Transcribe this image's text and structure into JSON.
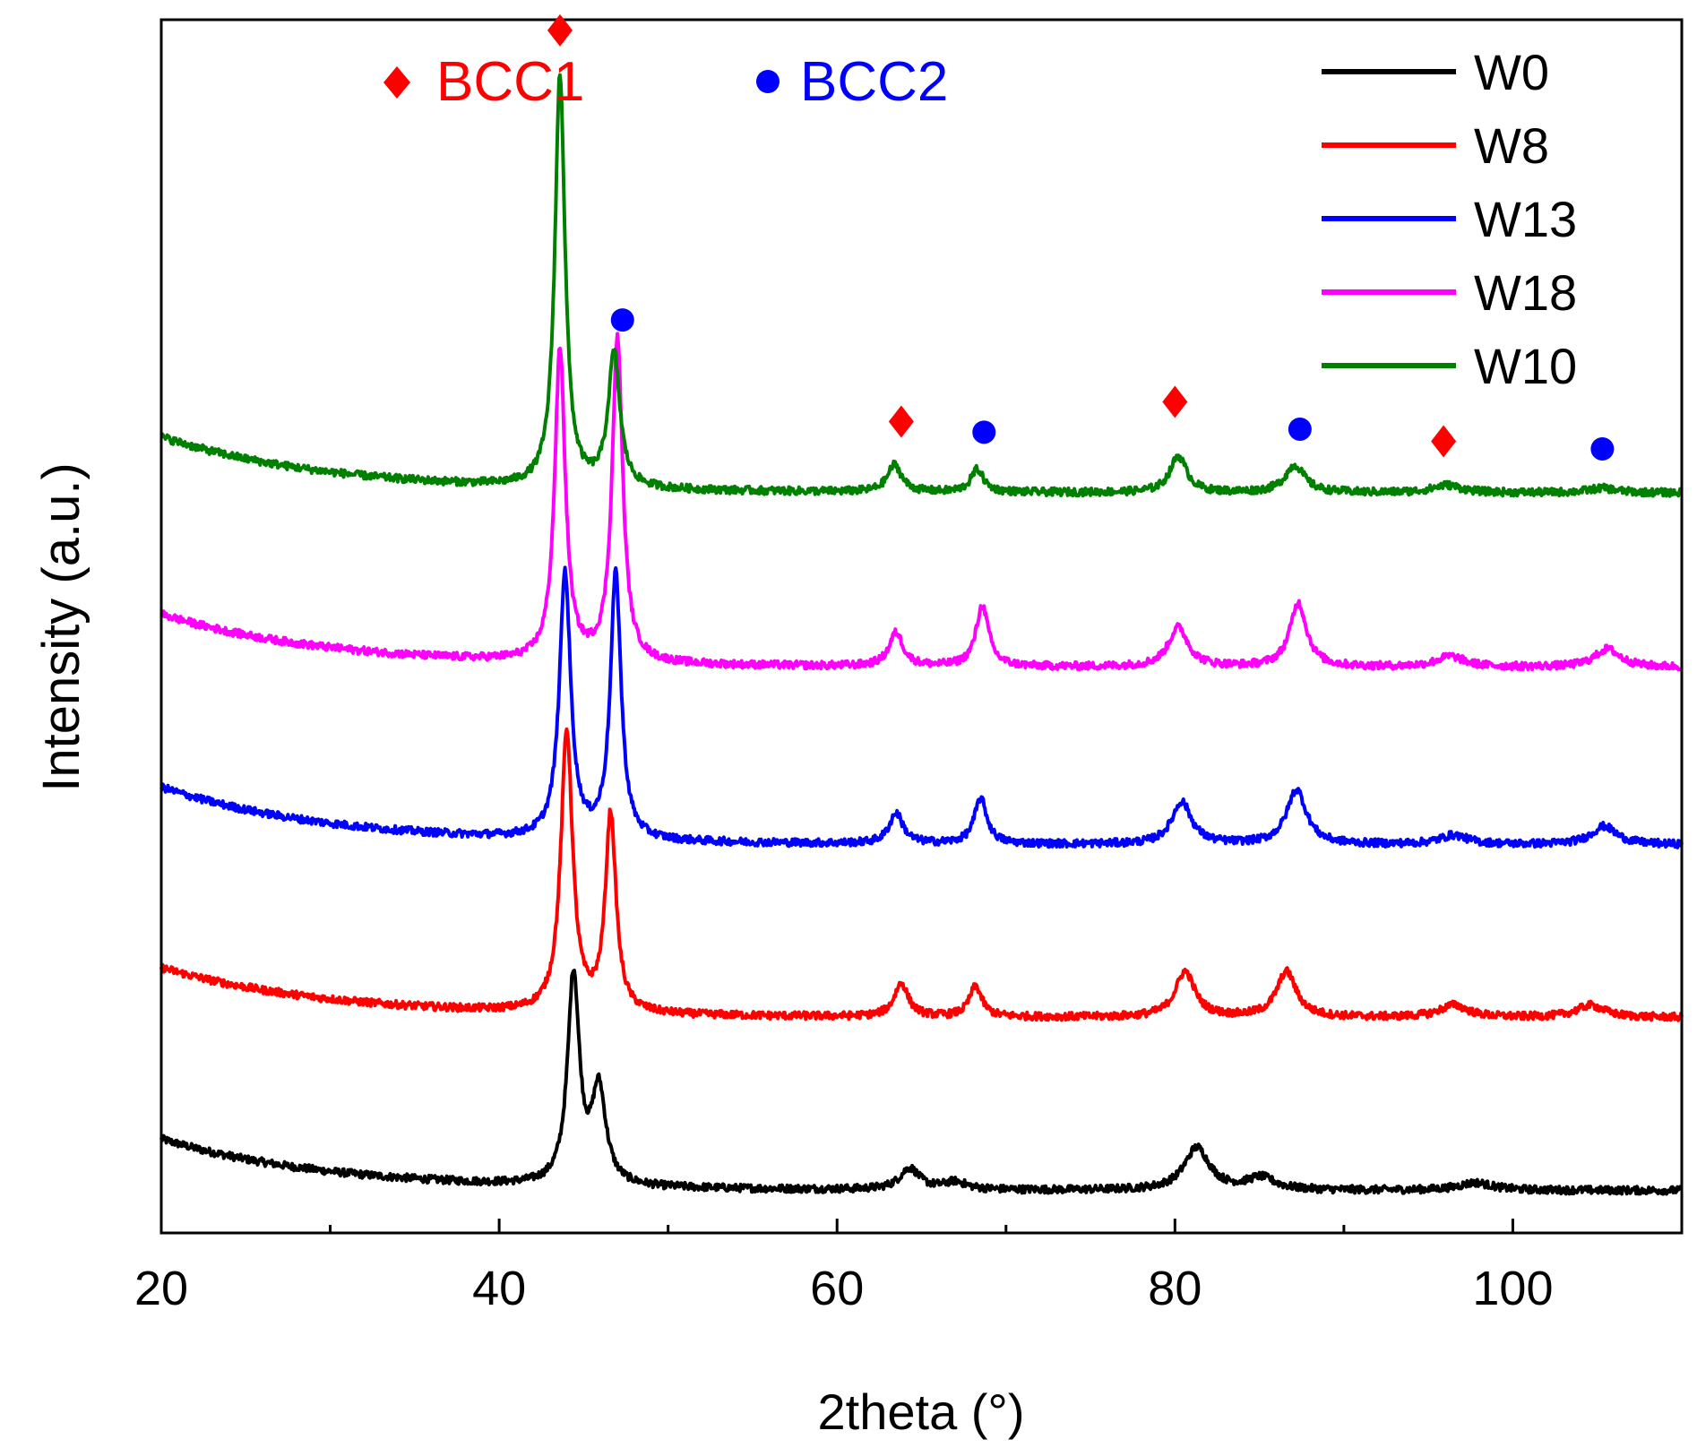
{
  "chart_data": {
    "type": "line",
    "title": "",
    "xlabel": "2theta (°)",
    "ylabel": "Intensity (a.u.)",
    "xlim": [
      20,
      110
    ],
    "ylim": [
      0,
      8
    ],
    "x_ticks": [
      20,
      40,
      60,
      80,
      100
    ],
    "x_minor_ticks": [
      30,
      50,
      70,
      90
    ],
    "y_ticks_shown": false,
    "grid": false,
    "legend_position": "top-right",
    "phase_legend": [
      {
        "label": "BCC1",
        "marker": "diamond",
        "color": "#ff0000"
      },
      {
        "label": "BCC2",
        "marker": "circle",
        "color": "#0000ff"
      }
    ],
    "series": [
      {
        "name": "W0",
        "color": "#000000",
        "baseline": 0.28,
        "start_level": 0.62,
        "decay": 10,
        "peaks": [
          [
            44.4,
            1.38,
            0.42
          ],
          [
            45.9,
            0.62,
            0.5
          ],
          [
            64.3,
            0.14,
            0.7
          ],
          [
            67,
            0.05,
            0.8
          ],
          [
            81.3,
            0.28,
            0.9
          ],
          [
            85.1,
            0.08,
            1.0
          ],
          [
            97.8,
            0.05,
            1.2
          ]
        ]
      },
      {
        "name": "W8",
        "color": "#ff0000",
        "baseline": 1.42,
        "start_level": 1.75,
        "decay": 10,
        "peaks": [
          [
            44,
            1.85,
            0.42
          ],
          [
            46.6,
            1.3,
            0.38
          ],
          [
            63.8,
            0.22,
            0.5
          ],
          [
            68.2,
            0.2,
            0.45
          ],
          [
            80.6,
            0.3,
            0.7
          ],
          [
            86.6,
            0.3,
            0.7
          ],
          [
            96.5,
            0.08,
            1.0
          ],
          [
            104.6,
            0.08,
            1.0
          ]
        ]
      },
      {
        "name": "W13",
        "color": "#0000ff",
        "baseline": 2.56,
        "start_level": 2.94,
        "decay": 10,
        "peaks": [
          [
            43.9,
            1.75,
            0.4
          ],
          [
            46.9,
            1.75,
            0.38
          ],
          [
            63.5,
            0.2,
            0.5
          ],
          [
            68.5,
            0.3,
            0.45
          ],
          [
            80.4,
            0.28,
            0.7
          ],
          [
            87.2,
            0.36,
            0.7
          ],
          [
            96.5,
            0.06,
            1.0
          ],
          [
            105.4,
            0.12,
            0.9
          ]
        ]
      },
      {
        "name": "W18",
        "color": "#ff00ff",
        "baseline": 3.73,
        "start_level": 4.08,
        "decay": 10,
        "peaks": [
          [
            43.6,
            2.05,
            0.38
          ],
          [
            47,
            2.13,
            0.38
          ],
          [
            63.5,
            0.22,
            0.5
          ],
          [
            68.6,
            0.4,
            0.45
          ],
          [
            80.2,
            0.26,
            0.7
          ],
          [
            87.3,
            0.42,
            0.6
          ],
          [
            96.3,
            0.07,
            1.0
          ],
          [
            105.6,
            0.12,
            0.9
          ]
        ]
      },
      {
        "name": "W10",
        "color": "#008000",
        "baseline": 4.88,
        "start_level": 5.25,
        "decay": 10,
        "peaks": [
          [
            43.6,
            2.72,
            0.36
          ],
          [
            46.8,
            0.88,
            0.42
          ],
          [
            63.4,
            0.18,
            0.5
          ],
          [
            68.3,
            0.15,
            0.45
          ],
          [
            80.2,
            0.24,
            0.6
          ],
          [
            87.1,
            0.18,
            0.7
          ],
          [
            96.1,
            0.05,
            1.0
          ],
          [
            105.3,
            0.03,
            1.0
          ]
        ]
      }
    ],
    "annotations": [
      {
        "phase": "BCC1",
        "x": 43.6,
        "y": 7.93
      },
      {
        "phase": "BCC2",
        "x": 47.3,
        "y": 6.02
      },
      {
        "phase": "BCC1",
        "x": 63.8,
        "y": 5.35
      },
      {
        "phase": "BCC2",
        "x": 68.7,
        "y": 5.28
      },
      {
        "phase": "BCC1",
        "x": 80.0,
        "y": 5.48
      },
      {
        "phase": "BCC2",
        "x": 87.4,
        "y": 5.3
      },
      {
        "phase": "BCC1",
        "x": 95.9,
        "y": 5.22
      },
      {
        "phase": "BCC2",
        "x": 105.3,
        "y": 5.17
      }
    ]
  }
}
